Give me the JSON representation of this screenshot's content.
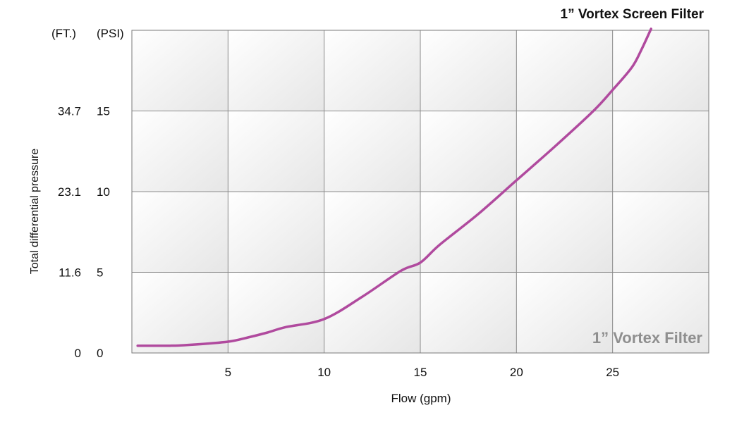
{
  "chart_data": {
    "type": "line",
    "title": "1” Vortex Screen  Filter",
    "watermark": "1” Vortex Filter",
    "xlabel": "Flow (gpm)",
    "ylabel": "Total differential pressure",
    "y_unit_ft": "(FT.)",
    "y_unit_psi": "(PSI)",
    "xlim": [
      0,
      30
    ],
    "ylim": [
      0,
      20
    ],
    "x_ticks": [
      5,
      10,
      15,
      20,
      25
    ],
    "y_ticks_psi": [
      0,
      5,
      10,
      15
    ],
    "y_ticks_ft": [
      "0",
      "11.6",
      "23.1",
      "34.7"
    ],
    "y_tick_labels_psi": [
      "0",
      "5",
      "10",
      "15"
    ],
    "x_tick_labels": [
      "5",
      "10",
      "15",
      "20",
      "25"
    ],
    "grid": true,
    "series": [
      {
        "color": "#b04a9e",
        "x": [
          0.3,
          2,
          3,
          5,
          6,
          7,
          8,
          10,
          12,
          14,
          15,
          16,
          18,
          20,
          22,
          24,
          25,
          26,
          26.5,
          27
        ],
        "y": [
          0.45,
          0.45,
          0.5,
          0.7,
          0.95,
          1.25,
          1.6,
          2.1,
          3.5,
          5.1,
          5.6,
          6.7,
          8.6,
          10.7,
          12.8,
          15.0,
          16.3,
          17.7,
          18.8,
          20.2
        ]
      }
    ]
  }
}
